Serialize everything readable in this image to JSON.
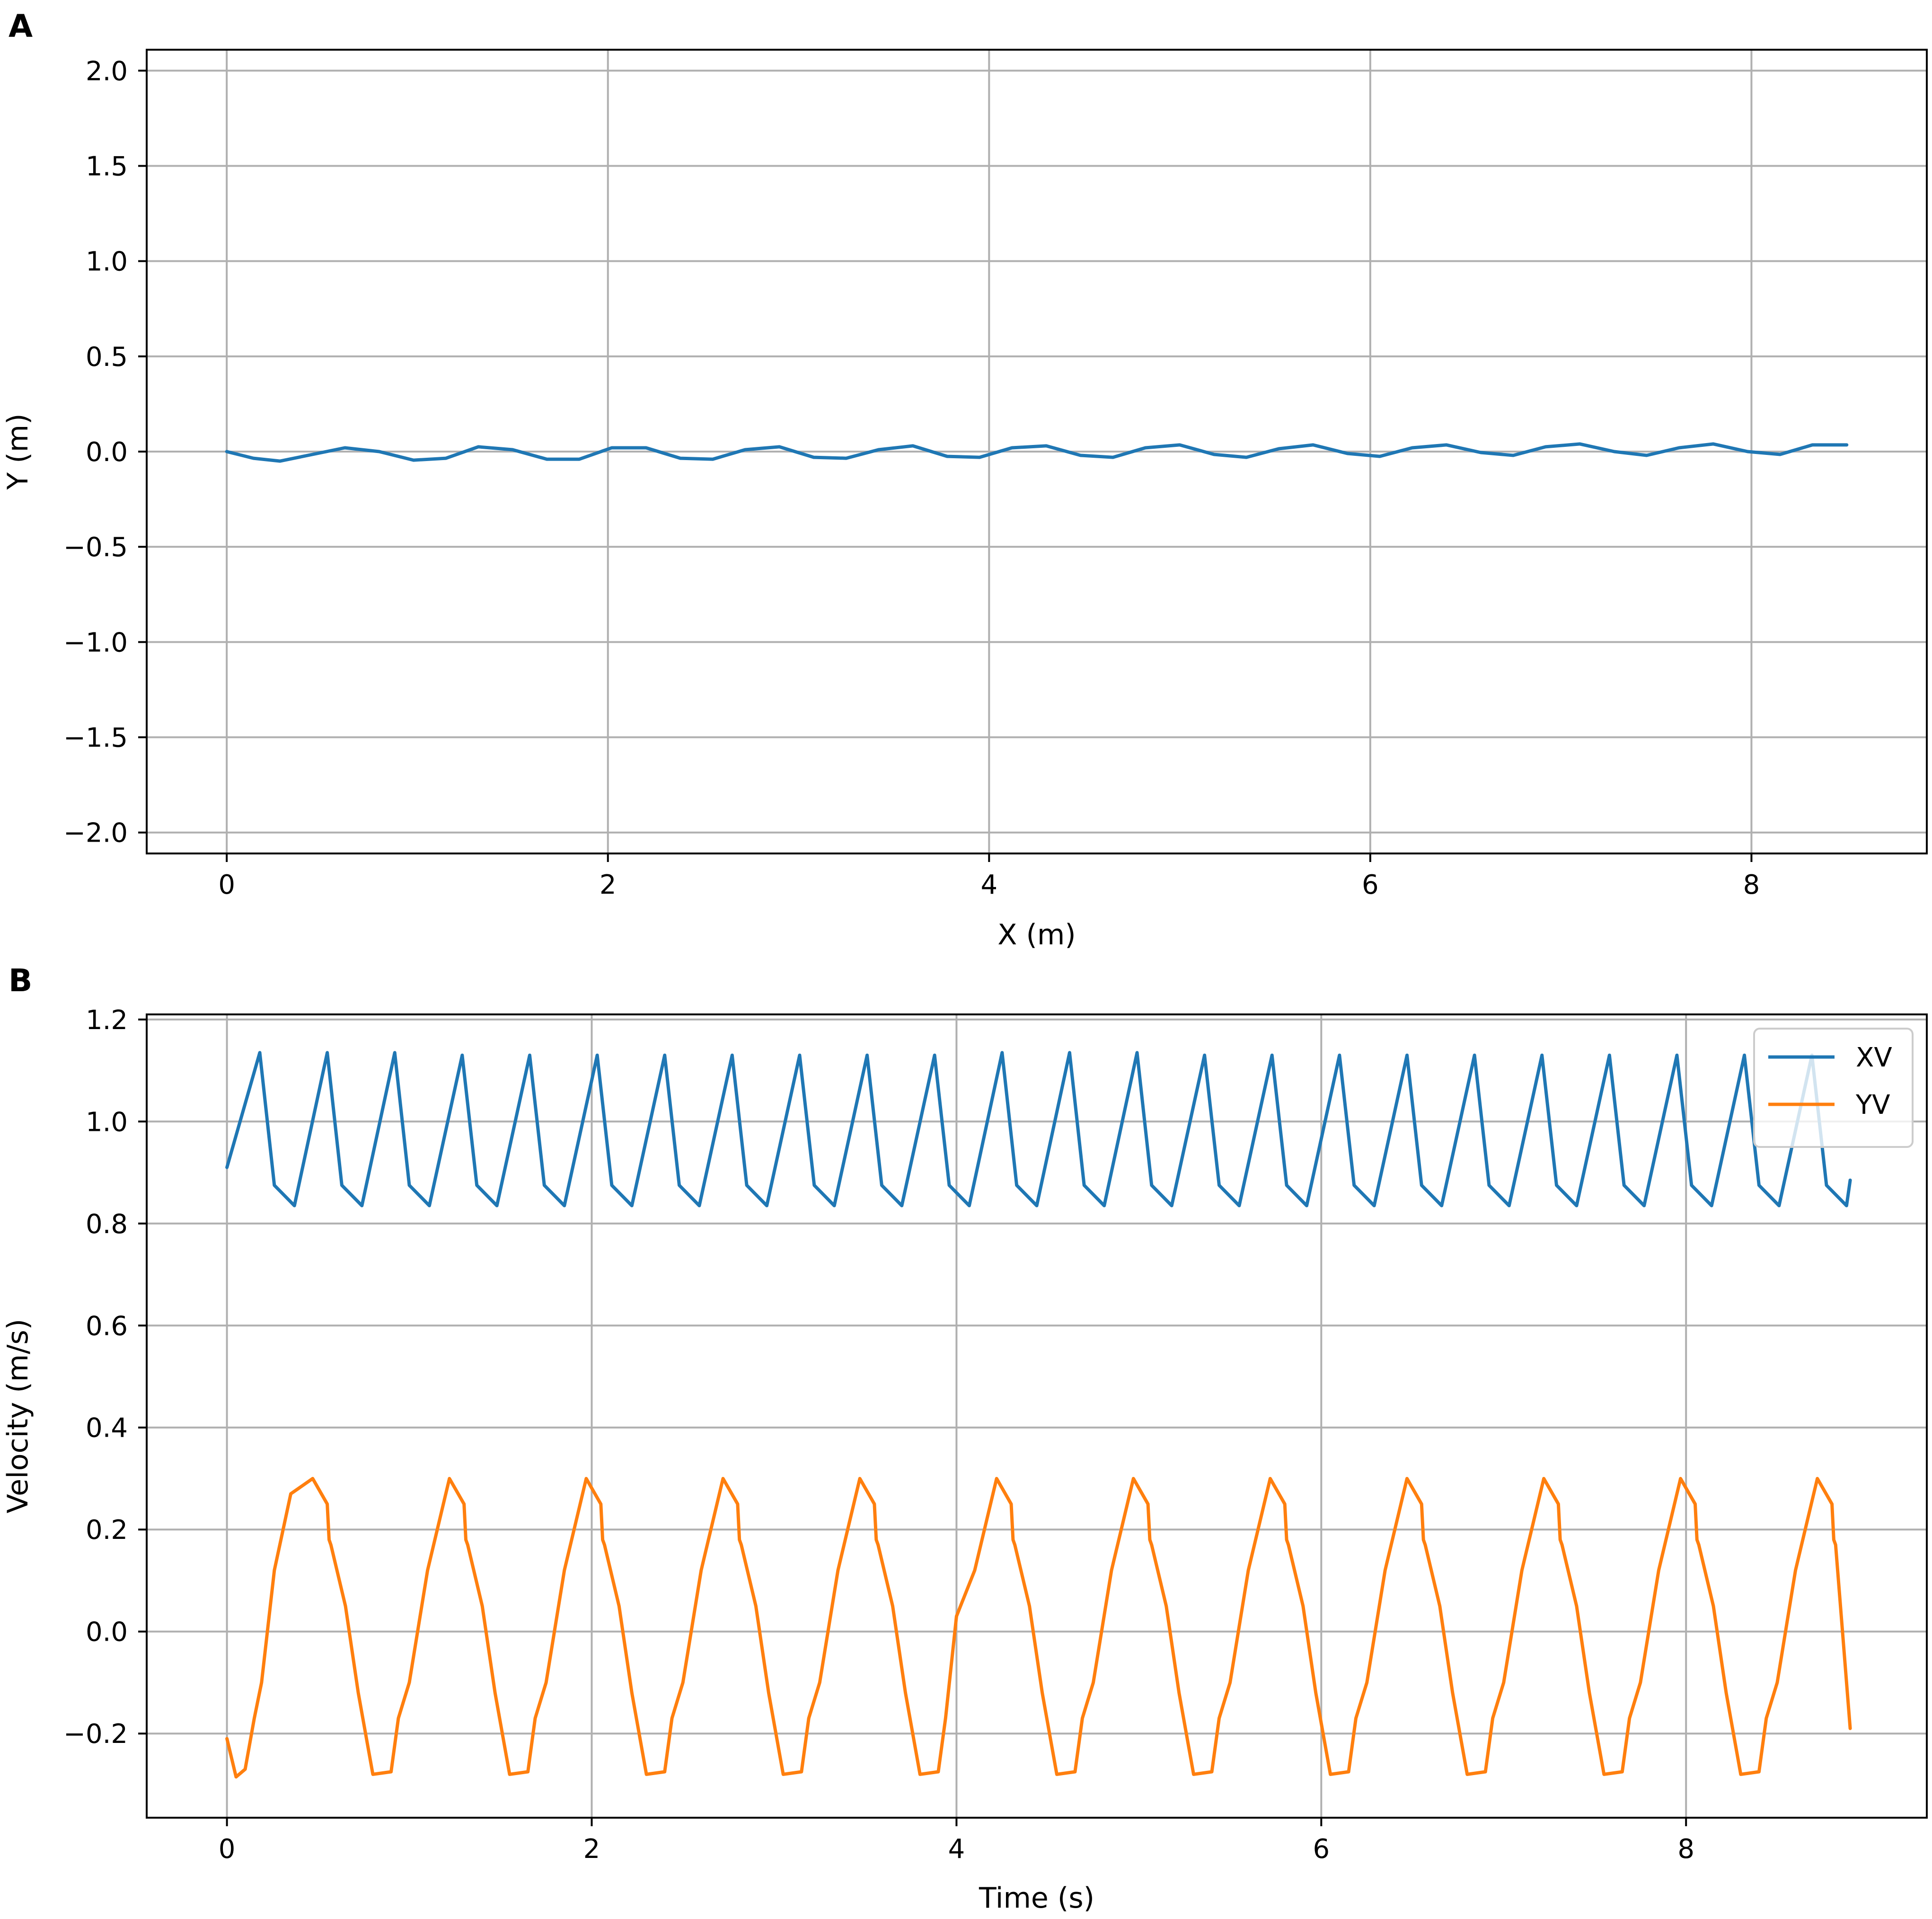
{
  "chart_data": [
    {
      "panel": "A",
      "type": "line",
      "xlabel": "X (m)",
      "ylabel": "Y (m)",
      "xlim": [
        -0.42,
        8.92
      ],
      "ylim": [
        -2.11,
        2.11
      ],
      "xticks": [
        0,
        2,
        4,
        6,
        8
      ],
      "xtick_labels": [
        "0",
        "2",
        "4",
        "6",
        "8"
      ],
      "yticks": [
        2.0,
        1.5,
        1.0,
        0.5,
        0.0,
        -0.5,
        -1.0,
        -1.5,
        -2.0
      ],
      "ytick_labels": [
        "2.0",
        "1.5",
        "1.0",
        "0.5",
        "0.0",
        "−0.5",
        "−1.0",
        "−1.5",
        "−2.0"
      ],
      "grid": true,
      "series": [
        {
          "color": "#1f77b4",
          "x": [
            0,
            0.14,
            0.28,
            0.45,
            0.62,
            0.8,
            0.98,
            1.15,
            1.32,
            1.5,
            1.68,
            1.85,
            2.02,
            2.2,
            2.38,
            2.55,
            2.72,
            2.9,
            3.08,
            3.25,
            3.42,
            3.6,
            3.78,
            3.95,
            4.12,
            4.3,
            4.48,
            4.65,
            4.82,
            5.0,
            5.18,
            5.35,
            5.52,
            5.7,
            5.88,
            6.05,
            6.22,
            6.4,
            6.58,
            6.75,
            6.92,
            7.1,
            7.28,
            7.45,
            7.62,
            7.8,
            7.98,
            8.15,
            8.32,
            8.5
          ],
          "y": [
            0.0,
            -0.035,
            -0.05,
            -0.015,
            0.02,
            0.0,
            -0.045,
            -0.035,
            0.025,
            0.01,
            -0.04,
            -0.04,
            0.02,
            0.02,
            -0.035,
            -0.04,
            0.01,
            0.025,
            -0.03,
            -0.035,
            0.01,
            0.03,
            -0.025,
            -0.03,
            0.02,
            0.03,
            -0.02,
            -0.03,
            0.02,
            0.035,
            -0.015,
            -0.03,
            0.015,
            0.035,
            -0.01,
            -0.025,
            0.02,
            0.035,
            -0.005,
            -0.02,
            0.025,
            0.04,
            0.0,
            -0.02,
            0.02,
            0.04,
            0.0,
            -0.015,
            0.035,
            0.035
          ]
        }
      ]
    },
    {
      "panel": "B",
      "type": "line",
      "xlabel": "Time (s)",
      "ylabel": "Velocity (m/s)",
      "xlim": [
        -0.44,
        9.32
      ],
      "ylim": [
        -0.365,
        1.21
      ],
      "xticks": [
        0,
        2,
        4,
        6,
        8
      ],
      "xtick_labels": [
        "0",
        "2",
        "4",
        "6",
        "8"
      ],
      "yticks": [
        1.2,
        1.0,
        0.8,
        0.6,
        0.4,
        0.2,
        0.0,
        -0.2
      ],
      "ytick_labels": [
        "1.2",
        "1.0",
        "0.8",
        "0.6",
        "0.4",
        "0.2",
        "0.0",
        "−0.2"
      ],
      "grid": true,
      "legend_position": "top-right",
      "series": [
        {
          "name": "XV",
          "color": "#1f77b4",
          "x": [
            0,
            0.18,
            0.26,
            0.37,
            0.55,
            0.63,
            0.74,
            0.92,
            1.0,
            1.11,
            1.29,
            1.37,
            1.48,
            1.66,
            1.74,
            1.85,
            2.03,
            2.11,
            2.22,
            2.4,
            2.48,
            2.59,
            2.77,
            2.85,
            2.96,
            3.14,
            3.22,
            3.33,
            3.51,
            3.59,
            3.7,
            3.88,
            3.96,
            4.07,
            4.25,
            4.33,
            4.44,
            4.62,
            4.7,
            4.81,
            4.99,
            5.07,
            5.18,
            5.36,
            5.44,
            5.55,
            5.73,
            5.81,
            5.92,
            6.1,
            6.18,
            6.29,
            6.47,
            6.55,
            6.66,
            6.84,
            6.92,
            7.03,
            7.21,
            7.29,
            7.4,
            7.58,
            7.66,
            7.77,
            7.95,
            8.03,
            8.14,
            8.32,
            8.4,
            8.51,
            8.69,
            8.77,
            8.88,
            8.9
          ],
          "y": [
            0.91,
            1.135,
            0.875,
            0.835,
            1.135,
            0.875,
            0.835,
            1.135,
            0.875,
            0.835,
            1.13,
            0.875,
            0.835,
            1.13,
            0.875,
            0.835,
            1.13,
            0.875,
            0.835,
            1.13,
            0.875,
            0.835,
            1.13,
            0.875,
            0.835,
            1.13,
            0.875,
            0.835,
            1.13,
            0.875,
            0.835,
            1.13,
            0.875,
            0.835,
            1.135,
            0.875,
            0.835,
            1.135,
            0.875,
            0.835,
            1.135,
            0.875,
            0.835,
            1.13,
            0.875,
            0.835,
            1.13,
            0.875,
            0.835,
            1.13,
            0.875,
            0.835,
            1.13,
            0.875,
            0.835,
            1.13,
            0.875,
            0.835,
            1.13,
            0.875,
            0.835,
            1.13,
            0.875,
            0.835,
            1.13,
            0.875,
            0.835,
            1.13,
            0.875,
            0.835,
            1.13,
            0.875,
            0.835,
            0.885
          ]
        },
        {
          "name": "YV",
          "color": "#ff7f0e",
          "x": [
            0,
            0.05,
            0.1,
            0.15,
            0.19,
            0.26,
            0.35,
            0.47,
            0.55,
            0.56,
            0.57,
            0.65,
            0.72,
            0.8,
            0.9,
            0.94,
            1.0,
            1.1,
            1.22,
            1.3,
            1.31,
            1.32,
            1.4,
            1.47,
            1.55,
            1.65,
            1.69,
            1.75,
            1.85,
            1.97,
            2.05,
            2.06,
            2.07,
            2.15,
            2.22,
            2.3,
            2.4,
            2.44,
            2.5,
            2.6,
            2.72,
            2.8,
            2.81,
            2.82,
            2.9,
            2.97,
            3.05,
            3.15,
            3.19,
            3.25,
            3.35,
            3.47,
            3.55,
            3.56,
            3.57,
            3.65,
            3.72,
            3.8,
            3.9,
            3.94,
            4.0,
            4.1,
            4.22,
            4.3,
            4.31,
            4.32,
            4.4,
            4.47,
            4.55,
            4.65,
            4.69,
            4.75,
            4.85,
            4.97,
            5.05,
            5.06,
            5.07,
            5.15,
            5.22,
            5.3,
            5.4,
            5.44,
            5.5,
            5.6,
            5.72,
            5.8,
            5.81,
            5.82,
            5.9,
            5.97,
            6.05,
            6.15,
            6.19,
            6.25,
            6.35,
            6.47,
            6.55,
            6.56,
            6.57,
            6.65,
            6.72,
            6.8,
            6.9,
            6.94,
            7.0,
            7.1,
            7.22,
            7.3,
            7.31,
            7.32,
            7.4,
            7.47,
            7.55,
            7.65,
            7.69,
            7.75,
            7.85,
            7.97,
            8.05,
            8.06,
            8.07,
            8.15,
            8.22,
            8.3,
            8.4,
            8.44,
            8.5,
            8.6,
            8.72,
            8.8,
            8.81,
            8.82,
            8.9
          ],
          "y": [
            -0.21,
            -0.285,
            -0.27,
            -0.17,
            -0.1,
            0.12,
            0.27,
            0.3,
            0.25,
            0.18,
            0.17,
            0.05,
            -0.12,
            -0.28,
            -0.275,
            -0.17,
            -0.1,
            0.12,
            0.3,
            0.25,
            0.18,
            0.17,
            0.05,
            -0.12,
            -0.28,
            -0.275,
            -0.17,
            -0.1,
            0.12,
            0.3,
            0.25,
            0.18,
            0.17,
            0.05,
            -0.12,
            -0.28,
            -0.275,
            -0.17,
            -0.1,
            0.12,
            0.3,
            0.25,
            0.18,
            0.17,
            0.05,
            -0.12,
            -0.28,
            -0.275,
            -0.17,
            -0.1,
            0.12,
            0.3,
            0.25,
            0.18,
            0.17,
            0.05,
            -0.12,
            -0.28,
            -0.275,
            -0.17,
            0.03,
            0.12,
            0.3,
            0.25,
            0.18,
            0.17,
            0.05,
            -0.12,
            -0.28,
            -0.275,
            -0.17,
            -0.1,
            0.12,
            0.3,
            0.25,
            0.18,
            0.17,
            0.05,
            -0.12,
            -0.28,
            -0.275,
            -0.17,
            -0.1,
            0.12,
            0.3,
            0.25,
            0.18,
            0.17,
            0.05,
            -0.12,
            -0.28,
            -0.275,
            -0.17,
            -0.1,
            0.12,
            0.3,
            0.25,
            0.18,
            0.17,
            0.05,
            -0.12,
            -0.28,
            -0.275,
            -0.17,
            -0.1,
            0.12,
            0.3,
            0.25,
            0.18,
            0.17,
            0.05,
            -0.12,
            -0.28,
            -0.275,
            -0.17,
            -0.1,
            0.12,
            0.3,
            0.25,
            0.18,
            0.17,
            0.05,
            -0.12,
            -0.28,
            -0.275,
            -0.17,
            -0.1,
            0.12,
            0.3,
            0.25,
            0.18,
            0.17,
            -0.19
          ]
        }
      ]
    }
  ]
}
